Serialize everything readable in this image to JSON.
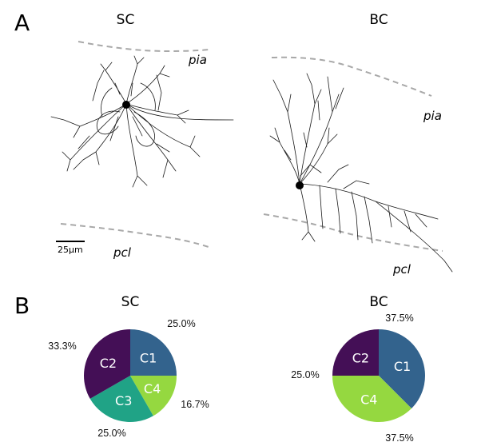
{
  "panels": {
    "a": {
      "letter": "A"
    },
    "b": {
      "letter": "B"
    }
  },
  "morphology": {
    "sc": {
      "title": "SC",
      "pia": "pia",
      "pcl": "pcl"
    },
    "bc": {
      "title": "BC",
      "pia": "pia",
      "pcl": "pcl"
    },
    "scale_bar": {
      "label": "25µm"
    }
  },
  "colors": {
    "C1": "#33638d",
    "C2": "#440f56",
    "C3": "#20a386",
    "C4": "#95d840",
    "soma": "#000000",
    "boundary": "#a8a8a8"
  },
  "chart_data": [
    {
      "type": "pie",
      "title": "SC",
      "slices": [
        {
          "label": "C1",
          "value": 25.0,
          "value_label": "25.0%"
        },
        {
          "label": "C4",
          "value": 16.7,
          "value_label": "16.7%"
        },
        {
          "label": "C3",
          "value": 25.0,
          "value_label": "25.0%"
        },
        {
          "label": "C2",
          "value": 33.3,
          "value_label": "33.3%"
        }
      ]
    },
    {
      "type": "pie",
      "title": "BC",
      "slices": [
        {
          "label": "C1",
          "value": 37.5,
          "value_label": "37.5%"
        },
        {
          "label": "C4",
          "value": 37.5,
          "value_label": "37.5%"
        },
        {
          "label": "C2",
          "value": 25.0,
          "value_label": "25.0%"
        }
      ]
    }
  ]
}
